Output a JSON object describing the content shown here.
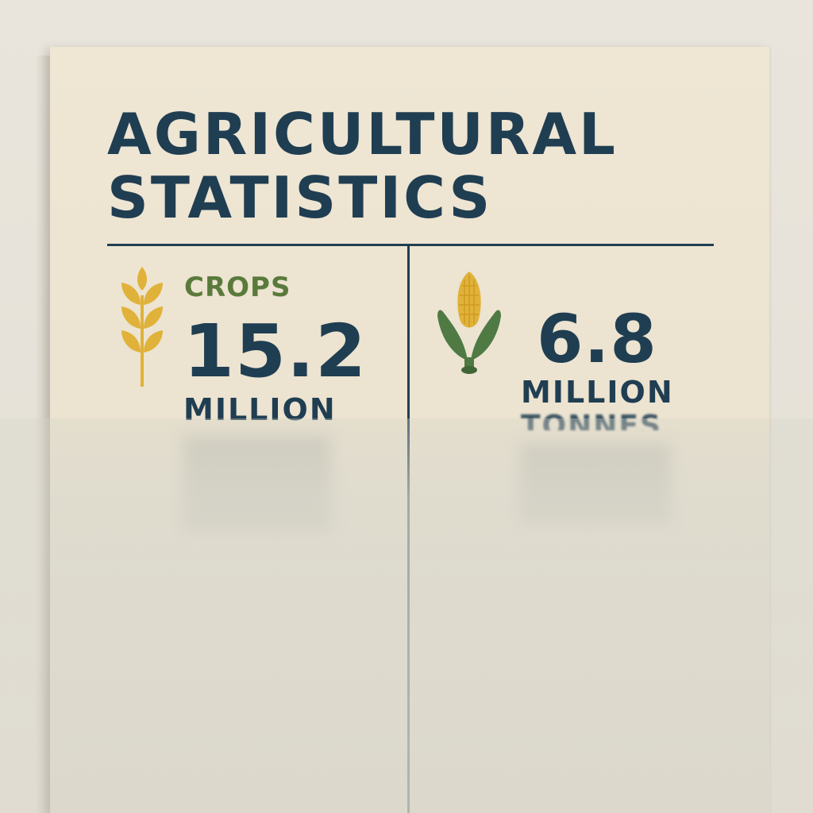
{
  "poster": {
    "title_line1": "AGRICULTURAL",
    "title_line2": "STATISTICS"
  },
  "left_stat": {
    "label": "CROPS",
    "value": "15.2",
    "unit": "MILLION",
    "icon": "wheat-icon"
  },
  "right_stat": {
    "value": "6.8",
    "unit": "MILLION",
    "unit_line2": "TONNES",
    "icon": "corn-icon"
  },
  "colors": {
    "navy": "#203e52",
    "green": "#5a7a3c",
    "gold": "#e0b23a",
    "paper": "#efe6d4"
  }
}
